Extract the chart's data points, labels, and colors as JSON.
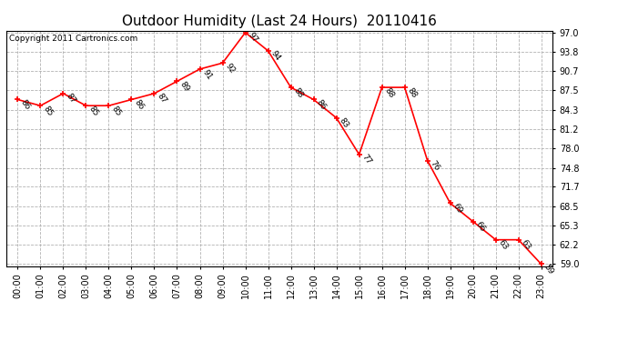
{
  "title": "Outdoor Humidity (Last 24 Hours)  20110416",
  "copyright": "Copyright 2011 Cartronics.com",
  "hours": [
    "00:00",
    "01:00",
    "02:00",
    "03:00",
    "04:00",
    "05:00",
    "06:00",
    "07:00",
    "08:00",
    "09:00",
    "10:00",
    "11:00",
    "12:00",
    "13:00",
    "14:00",
    "15:00",
    "16:00",
    "17:00",
    "18:00",
    "19:00",
    "20:00",
    "21:00",
    "22:00",
    "23:00"
  ],
  "values": [
    86,
    85,
    87,
    85,
    85,
    86,
    87,
    89,
    91,
    92,
    97,
    94,
    88,
    86,
    83,
    77,
    88,
    88,
    76,
    69,
    66,
    63,
    63,
    59
  ],
  "ylim_min": 59.0,
  "ylim_max": 97.0,
  "yticks": [
    59.0,
    62.2,
    65.3,
    68.5,
    71.7,
    74.8,
    78.0,
    81.2,
    84.3,
    87.5,
    90.7,
    93.8,
    97.0
  ],
  "line_color": "red",
  "marker_color": "red",
  "bg_color": "white",
  "grid_color": "#aaaaaa",
  "title_fontsize": 11,
  "label_fontsize": 7,
  "annotation_fontsize": 6.5,
  "copyright_fontsize": 6.5
}
